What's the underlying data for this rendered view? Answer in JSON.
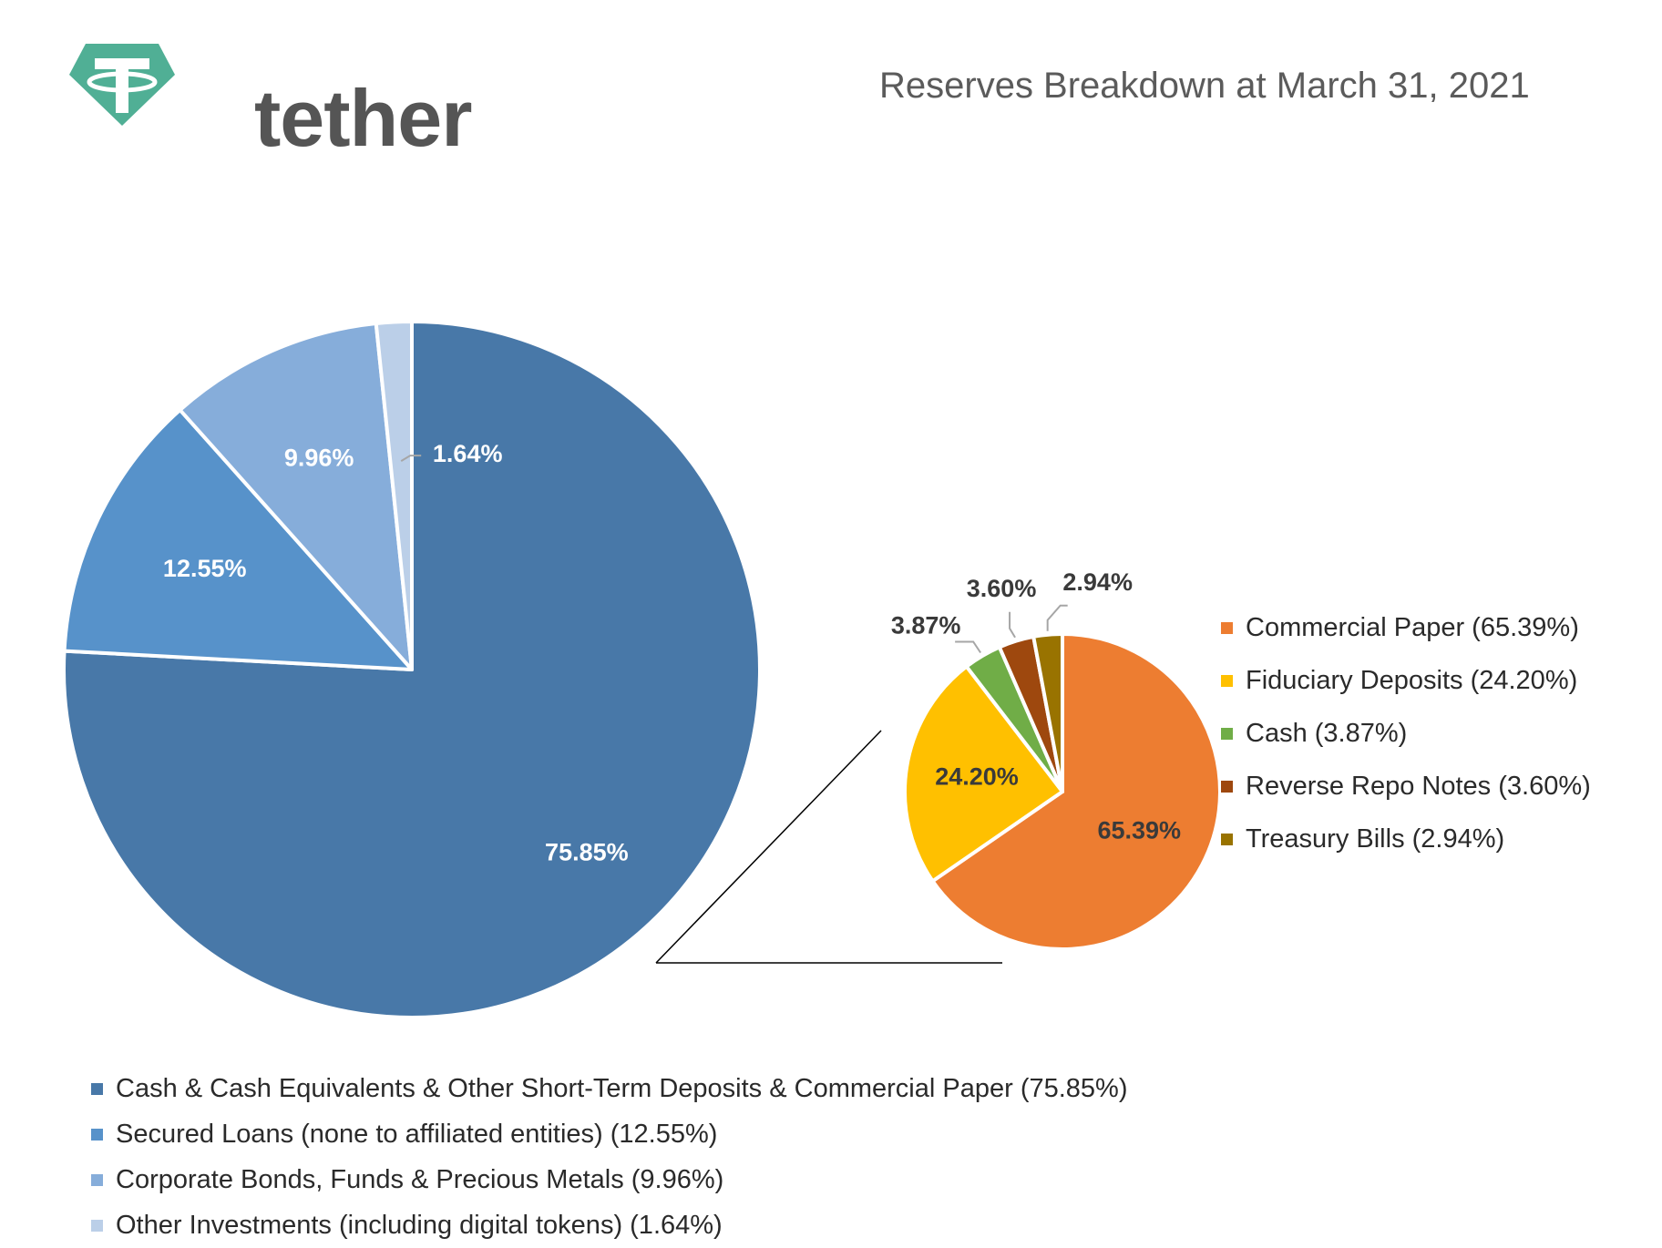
{
  "header": {
    "brand": "tether",
    "title": "Reserves Breakdown at March 31, 2021",
    "brand_color": "#50AF95"
  },
  "chart_data": [
    {
      "type": "pie",
      "slices": [
        {
          "label": "Cash & Cash Equivalents & Other Short-Term Deposits & Commercial Paper (75.85%)",
          "value": 75.85,
          "data_label": "75.85%",
          "color": "#4878A8"
        },
        {
          "label": "Secured Loans (none to affiliated entities) (12.55%)",
          "value": 12.55,
          "data_label": "12.55%",
          "color": "#5792CA"
        },
        {
          "label": "Corporate Bonds, Funds & Precious Metals (9.96%)",
          "value": 9.96,
          "data_label": "9.96%",
          "color": "#86ADDA"
        },
        {
          "label": "Other Investments (including digital tokens) (1.64%)",
          "value": 1.64,
          "data_label": "1.64%",
          "color": "#BBCFE8"
        }
      ],
      "legend": "bottom"
    },
    {
      "type": "pie",
      "slices": [
        {
          "label": "Commercial Paper (65.39%)",
          "value": 65.39,
          "data_label": "65.39%",
          "color": "#ED7D31"
        },
        {
          "label": "Fiduciary Deposits (24.20%)",
          "value": 24.2,
          "data_label": "24.20%",
          "color": "#FFC000"
        },
        {
          "label": "Cash (3.87%)",
          "value": 3.87,
          "data_label": "3.87%",
          "color": "#70AD47"
        },
        {
          "label": "Reverse Repo Notes (3.60%)",
          "value": 3.6,
          "data_label": "3.60%",
          "color": "#9E480E"
        },
        {
          "label": "Treasury Bills (2.94%)",
          "value": 2.94,
          "data_label": "2.94%",
          "color": "#997300"
        }
      ],
      "legend": "right"
    }
  ]
}
